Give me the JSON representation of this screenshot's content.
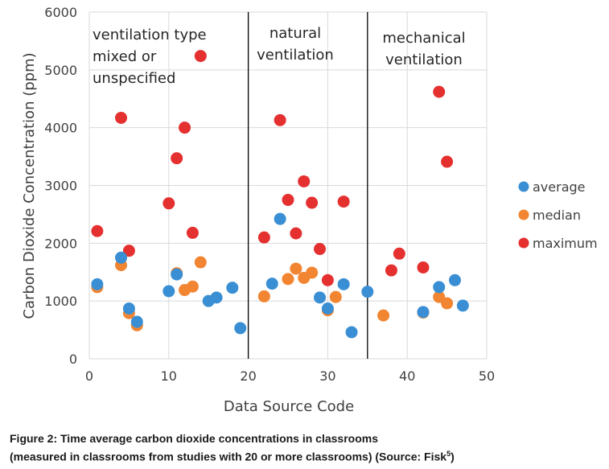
{
  "chart_data": {
    "type": "scatter",
    "title": "",
    "xlabel": "Data Source Code",
    "ylabel": "Carbon Dioxide Concentration (ppm)",
    "xlim": [
      0,
      50
    ],
    "ylim": [
      0,
      6000
    ],
    "x_ticks": [
      "0",
      "10",
      "20",
      "30",
      "40",
      "50"
    ],
    "y_ticks": [
      "0",
      "1000",
      "2000",
      "3000",
      "4000",
      "5000",
      "6000"
    ],
    "grid": true,
    "legend_position": "right",
    "dividers": [
      20,
      35
    ],
    "annotations": [
      {
        "lines": [
          "ventilation type",
          "mixed or",
          "unspecified"
        ]
      },
      {
        "lines": [
          "natural",
          "ventilation"
        ]
      },
      {
        "lines": [
          "mechanical",
          "ventilation"
        ]
      }
    ],
    "series": [
      {
        "name": "average",
        "color": "#3a8fd4",
        "points": [
          [
            1,
            1290
          ],
          [
            4,
            1750
          ],
          [
            5,
            870
          ],
          [
            6,
            640
          ],
          [
            10,
            1170
          ],
          [
            11,
            1460
          ],
          [
            15,
            1000
          ],
          [
            16,
            1060
          ],
          [
            18,
            1230
          ],
          [
            19,
            530
          ],
          [
            23,
            1300
          ],
          [
            24,
            2420
          ],
          [
            29,
            1060
          ],
          [
            30,
            870
          ],
          [
            32,
            1290
          ],
          [
            33,
            460
          ],
          [
            35,
            1160
          ],
          [
            42,
            810
          ],
          [
            44,
            1240
          ],
          [
            46,
            1360
          ],
          [
            47,
            920
          ]
        ]
      },
      {
        "name": "median",
        "color": "#f28531",
        "points": [
          [
            1,
            1240
          ],
          [
            4,
            1620
          ],
          [
            5,
            790
          ],
          [
            6,
            580
          ],
          [
            11,
            1480
          ],
          [
            12,
            1190
          ],
          [
            13,
            1250
          ],
          [
            14,
            1670
          ],
          [
            22,
            1080
          ],
          [
            25,
            1380
          ],
          [
            26,
            1560
          ],
          [
            27,
            1400
          ],
          [
            28,
            1490
          ],
          [
            30,
            840
          ],
          [
            31,
            1070
          ],
          [
            37,
            750
          ],
          [
            42,
            800
          ],
          [
            44,
            1070
          ],
          [
            45,
            960
          ]
        ]
      },
      {
        "name": "maximum",
        "color": "#e53030",
        "points": [
          [
            1,
            2210
          ],
          [
            4,
            4170
          ],
          [
            5,
            1870
          ],
          [
            10,
            2690
          ],
          [
            11,
            3470
          ],
          [
            12,
            4000
          ],
          [
            13,
            2180
          ],
          [
            14,
            5240
          ],
          [
            22,
            2100
          ],
          [
            24,
            4130
          ],
          [
            25,
            2750
          ],
          [
            26,
            2170
          ],
          [
            27,
            3070
          ],
          [
            28,
            2700
          ],
          [
            29,
            1900
          ],
          [
            30,
            1360
          ],
          [
            32,
            2720
          ],
          [
            38,
            1530
          ],
          [
            39,
            1820
          ],
          [
            42,
            1580
          ],
          [
            44,
            4620
          ],
          [
            45,
            3410
          ]
        ]
      }
    ]
  },
  "caption": {
    "line1": "Figure 2: Time average carbon dioxide concentrations in classrooms",
    "line2": "(measured in classrooms from studies with 20 or more classrooms) (Source: Fisk",
    "source_ref": "5",
    "line2_end": ")"
  }
}
